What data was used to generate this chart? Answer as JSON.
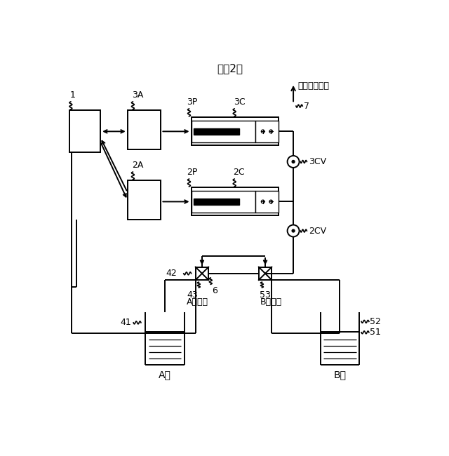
{
  "title": "》図2》",
  "bg_color": "#ffffff",
  "line_color": "#000000",
  "labels": {
    "title": "《図2》",
    "downstream": "後流の装置へ",
    "node1": "1",
    "node3A": "3A",
    "node2A": "2A",
    "node3P": "3P",
    "node3C": "3C",
    "node2P": "2P",
    "node2C": "2C",
    "node7": "7",
    "node3CV": "3CV",
    "node2CV": "2CV",
    "node42": "42",
    "node43": "43",
    "node6": "6",
    "node53": "53",
    "node41": "41",
    "node52": "52",
    "node51": "51",
    "labelA_solenoid": "A電磁弁",
    "labelB_solenoid": "B電磁弁",
    "labelA_liquid": "A液",
    "labelB_liquid": "B液"
  }
}
